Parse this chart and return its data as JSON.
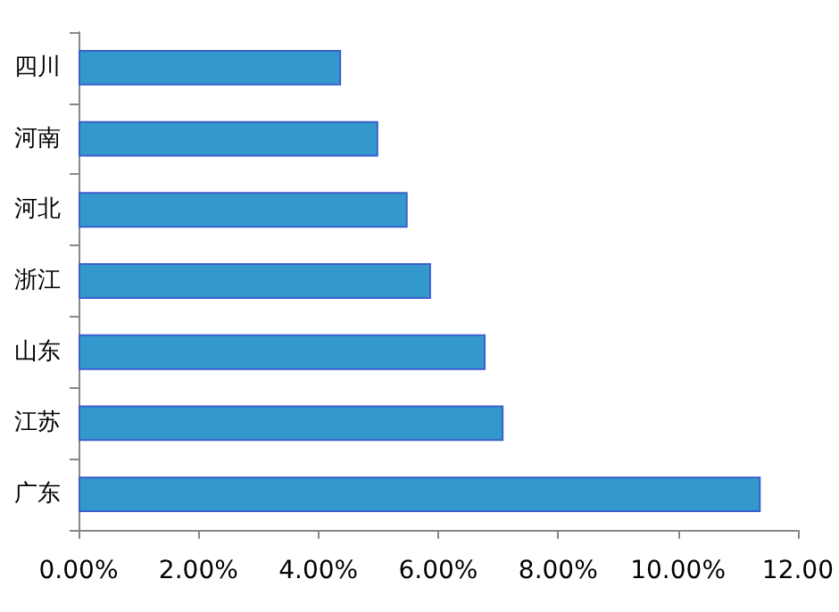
{
  "chart_data": {
    "type": "bar",
    "orientation": "horizontal",
    "categories": [
      "四川",
      "河南",
      "河北",
      "浙江",
      "山东",
      "江苏",
      "广东"
    ],
    "values": [
      4.38,
      5.0,
      5.49,
      5.88,
      6.79,
      7.09,
      11.38
    ],
    "color": "#3399cc",
    "xlim": [
      0,
      12
    ],
    "xticks": [
      {
        "value": 0,
        "label": "0.00%"
      },
      {
        "value": 2,
        "label": "2.00%"
      },
      {
        "value": 4,
        "label": "4.00%"
      },
      {
        "value": 6,
        "label": "6.00%"
      },
      {
        "value": 8,
        "label": "8.00%"
      },
      {
        "value": 10,
        "label": "10.00%"
      },
      {
        "value": 12,
        "label": "12.00"
      }
    ],
    "grid": false
  }
}
